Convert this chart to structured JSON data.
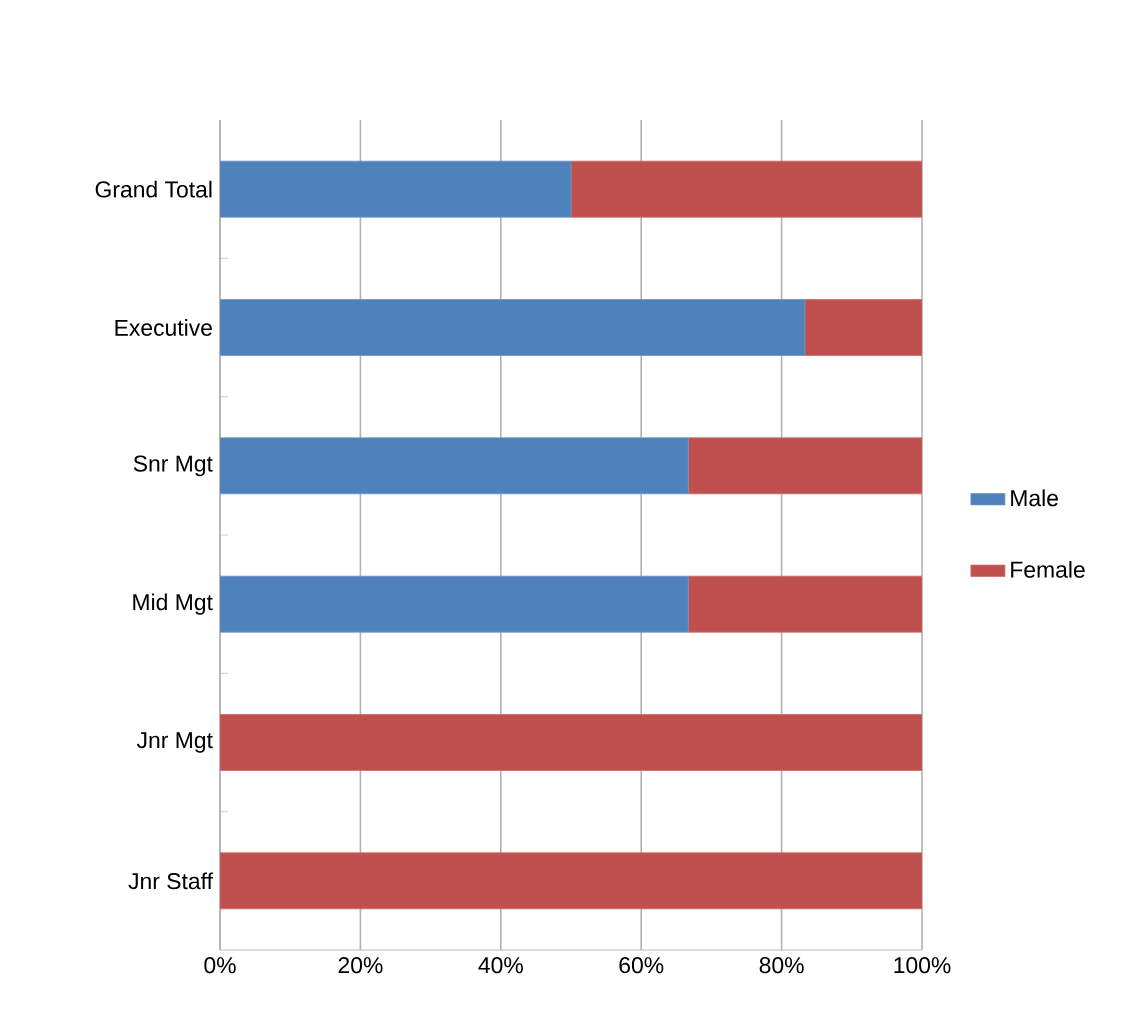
{
  "chart_data": {
    "type": "bar",
    "orientation": "horizontal",
    "stacked": true,
    "categories": [
      "Grand Total",
      "Executive",
      "Snr Mgt",
      "Mid Mgt",
      "Jnr Mgt",
      "Jnr Staff"
    ],
    "series": [
      {
        "name": "Male",
        "color": "#4f81bd",
        "values": [
          50,
          83.3,
          66.7,
          66.7,
          0,
          0
        ]
      },
      {
        "name": "Female",
        "color": "#c0504d",
        "values": [
          50,
          16.7,
          33.3,
          33.3,
          100,
          100
        ]
      }
    ],
    "xlim": [
      0,
      100
    ],
    "xticks": [
      {
        "value": 0,
        "label": "0%"
      },
      {
        "value": 20,
        "label": "20%"
      },
      {
        "value": 40,
        "label": "40%"
      },
      {
        "value": 60,
        "label": "60%"
      },
      {
        "value": 80,
        "label": "80%"
      },
      {
        "value": 100,
        "label": "100%"
      }
    ],
    "grid": "x",
    "legend": "right"
  }
}
